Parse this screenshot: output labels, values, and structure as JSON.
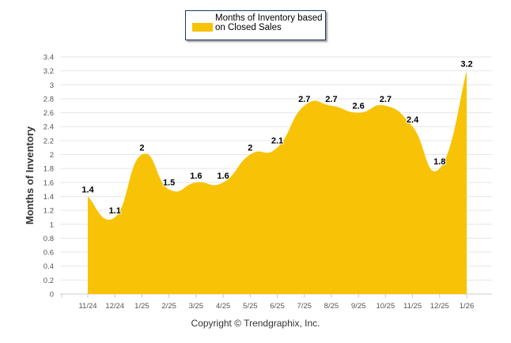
{
  "chart_data": {
    "type": "area",
    "title": "",
    "legend": {
      "label": "Months of Inventory based on Closed Sales",
      "placement": "top-center"
    },
    "ylabel": "Months of Inventory",
    "xlabel": "",
    "ylim": [
      0,
      3.4
    ],
    "yticks": [
      "0",
      "0.2",
      "0.4",
      "0.6",
      "0.8",
      "1",
      "1.2",
      "1.4",
      "1.6",
      "1.8",
      "2",
      "2.2",
      "2.4",
      "2.6",
      "2.8",
      "3",
      "3.2",
      "3.4"
    ],
    "categories": [
      "11/24",
      "12/24",
      "1/25",
      "2/25",
      "3/25",
      "4/25",
      "5/25",
      "6/25",
      "7/25",
      "8/25",
      "9/25",
      "10/25",
      "11/25",
      "12/25",
      "1/26"
    ],
    "values": [
      1.4,
      1.1,
      2,
      1.5,
      1.6,
      1.6,
      2,
      2.1,
      2.7,
      2.7,
      2.6,
      2.7,
      2.4,
      1.8,
      3.2
    ],
    "labels": [
      "1.4",
      "1.1",
      "2",
      "1.5",
      "1.6",
      "1.6",
      "2",
      "2.1",
      "2.7",
      "2.7",
      "2.6",
      "2.7",
      "2.4",
      "1.8",
      "3.2"
    ],
    "grid": true,
    "color": "#f8c307"
  },
  "footer": {
    "copyright": "Copyright © Trendgraphix, Inc."
  }
}
